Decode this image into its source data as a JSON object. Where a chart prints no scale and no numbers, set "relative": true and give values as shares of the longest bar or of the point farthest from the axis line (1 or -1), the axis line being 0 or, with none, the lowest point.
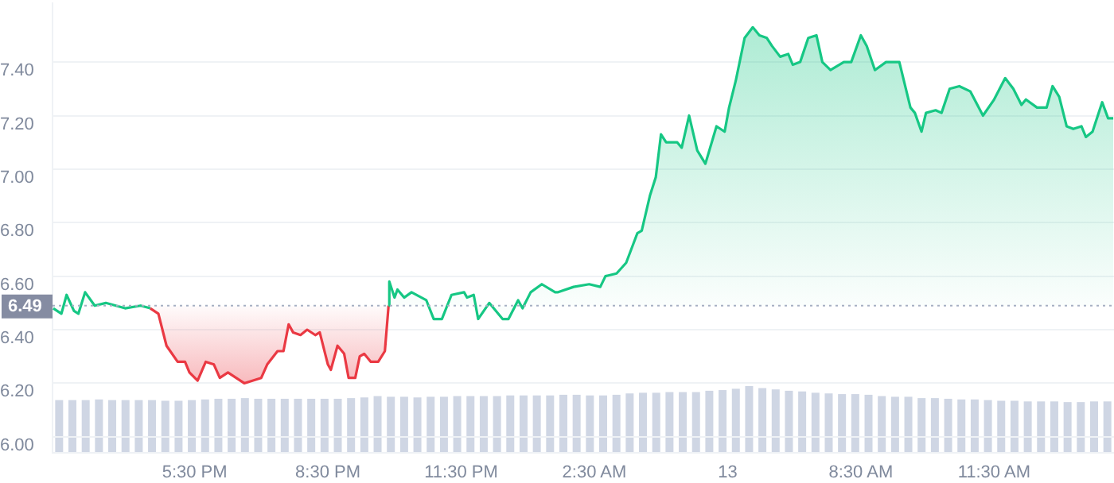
{
  "chart_data": [
    {
      "type": "area",
      "xlim": [
        "--01-12T14:18",
        "--01-13T14:12"
      ],
      "ylim": [
        5.94,
        7.62
      ],
      "xticks": [
        {
          "value": "--01-12T17:30",
          "label": "5:30 PM"
        },
        {
          "value": "--01-12T20:30",
          "label": "8:30 PM"
        },
        {
          "value": "--01-12T23:30",
          "label": "11:30 PM"
        },
        {
          "value": "--01-13T02:30",
          "label": "2:30 AM"
        },
        {
          "value": "--01-13T05:30",
          "label": "13"
        },
        {
          "value": "--01-13T08:30",
          "label": "8:30 AM"
        },
        {
          "value": "--01-13T11:30",
          "label": "11:30 AM"
        }
      ],
      "yticks": [
        {
          "value": 6,
          "label": "6.00"
        },
        {
          "value": 6.2,
          "label": "6.20"
        },
        {
          "value": 6.4,
          "label": "6.40"
        },
        {
          "value": 6.6,
          "label": "6.60"
        },
        {
          "value": 6.8,
          "label": "6.80"
        },
        {
          "value": 7,
          "label": "7.00"
        },
        {
          "value": 7.2,
          "label": "7.20"
        },
        {
          "value": 7.4,
          "label": "7.40"
        }
      ],
      "grid": "y",
      "legend": false,
      "ref_lines": [
        {
          "axis": "y",
          "value": 6.49,
          "label": "6.49"
        }
      ],
      "series": [
        {
          "color": "#16c784",
          "x": [
            "--01-12T14:19",
            "--01-12T14:30",
            "--01-12T14:37",
            "--01-12T14:47",
            "--01-12T14:53",
            "--01-12T15:02",
            "--01-12T15:15",
            "--01-12T15:30",
            "--01-12T15:56",
            "--01-12T16:17",
            "--01-12T16:30",
            "--01-12T19:00",
            "--01-12T21:52",
            "--01-12T21:53",
            "--01-12T22:00",
            "--01-12T22:04",
            "--01-12T22:13",
            "--01-12T22:23",
            "--01-12T22:43",
            "--01-12T22:53",
            "--01-12T23:04",
            "--01-12T23:17",
            "--01-12T23:34",
            "--01-12T23:38",
            "--01-12T23:47",
            "--01-12T23:53",
            "--01-13T00:08",
            "--01-13T00:26",
            "--01-13T00:34",
            "--01-13T00:47",
            "--01-13T00:53",
            "--01-13T01:04",
            "--01-13T01:19",
            "--01-13T01:37",
            "--01-13T01:41",
            "--01-13T02:02",
            "--01-13T02:23",
            "--01-13T02:38",
            "--01-13T02:45",
            "--01-13T03:00",
            "--01-13T03:13",
            "--01-13T03:28",
            "--01-13T03:34",
            "--01-13T03:45",
            "--01-13T03:53",
            "--01-13T04:00",
            "--01-13T04:07",
            "--01-13T04:22",
            "--01-13T04:28",
            "--01-13T04:38",
            "--01-13T04:49",
            "--01-13T05:00",
            "--01-13T05:15",
            "--01-13T05:26",
            "--01-13T05:32",
            "--01-13T05:41",
            "--01-13T05:53",
            "--01-13T06:04",
            "--01-13T06:13",
            "--01-13T06:23",
            "--01-13T06:30",
            "--01-13T06:41",
            "--01-13T06:52",
            "--01-13T06:58",
            "--01-13T07:08",
            "--01-13T07:19",
            "--01-13T07:30",
            "--01-13T07:38",
            "--01-13T07:49",
            "--01-13T08:07",
            "--01-13T08:17",
            "--01-13T08:30",
            "--01-13T08:38",
            "--01-13T08:49",
            "--01-13T09:04",
            "--01-13T09:22",
            "--01-13T09:37",
            "--01-13T09:43",
            "--01-13T09:52",
            "--01-13T09:58",
            "--01-13T10:11",
            "--01-13T10:19",
            "--01-13T10:30",
            "--01-13T10:43",
            "--01-13T10:58",
            "--01-13T11:15",
            "--01-13T11:30",
            "--01-13T11:45",
            "--01-13T11:56",
            "--01-13T12:07",
            "--01-13T12:13",
            "--01-13T12:28",
            "--01-13T12:41",
            "--01-13T12:49",
            "--01-13T12:58",
            "--01-13T13:08",
            "--01-13T13:17",
            "--01-13T13:28",
            "--01-13T13:34",
            "--01-13T13:43",
            "--01-13T13:56",
            "--01-13T14:04",
            "--01-13T14:11"
          ],
          "values": [
            6.48,
            6.46,
            6.53,
            6.47,
            6.46,
            6.54,
            6.49,
            6.5,
            6.48,
            6.49,
            6.48,
            null,
            6.49,
            6.58,
            6.52,
            6.55,
            6.52,
            6.54,
            6.51,
            6.44,
            6.44,
            6.53,
            6.54,
            6.52,
            6.53,
            6.44,
            6.5,
            6.44,
            6.44,
            6.51,
            6.48,
            6.54,
            6.57,
            6.54,
            6.54,
            6.56,
            6.57,
            6.56,
            6.6,
            6.61,
            6.65,
            6.76,
            6.77,
            6.9,
            6.97,
            7.13,
            7.1,
            7.1,
            7.08,
            7.2,
            7.07,
            7.02,
            7.16,
            7.14,
            7.23,
            7.33,
            7.49,
            7.53,
            7.5,
            7.49,
            7.46,
            7.42,
            7.43,
            7.39,
            7.4,
            7.49,
            7.5,
            7.4,
            7.37,
            7.4,
            7.4,
            7.5,
            7.46,
            7.37,
            7.4,
            7.4,
            7.23,
            7.21,
            7.14,
            7.21,
            7.22,
            7.21,
            7.3,
            7.31,
            7.29,
            7.2,
            7.26,
            7.34,
            7.3,
            7.24,
            7.26,
            7.23,
            7.23,
            7.31,
            7.27,
            7.16,
            7.15,
            7.16,
            7.12,
            7.14,
            7.25,
            7.19,
            7.19
          ]
        },
        {
          "color": "#ea3943",
          "x": [
            "--01-12T16:30",
            "--01-12T16:41",
            "--01-12T16:52",
            "--01-12T17:07",
            "--01-12T17:17",
            "--01-12T17:23",
            "--01-12T17:34",
            "--01-12T17:45",
            "--01-12T17:56",
            "--01-12T18:04",
            "--01-12T18:15",
            "--01-12T18:26",
            "--01-12T18:37",
            "--01-12T19:00",
            "--01-12T19:08",
            "--01-12T19:22",
            "--01-12T19:30",
            "--01-12T19:37",
            "--01-12T19:43",
            "--01-12T19:53",
            "--01-12T20:02",
            "--01-12T20:13",
            "--01-12T20:19",
            "--01-12T20:30",
            "--01-12T20:34",
            "--01-12T20:43",
            "--01-12T20:52",
            "--01-12T20:58",
            "--01-12T21:07",
            "--01-12T21:13",
            "--01-12T21:19",
            "--01-12T21:28",
            "--01-12T21:38",
            "--01-12T21:47",
            "--01-12T21:52"
          ],
          "values": [
            6.48,
            6.46,
            6.34,
            6.28,
            6.28,
            6.24,
            6.21,
            6.28,
            6.27,
            6.22,
            6.24,
            6.22,
            6.2,
            6.22,
            6.27,
            6.32,
            6.32,
            6.42,
            6.39,
            6.38,
            6.4,
            6.38,
            6.39,
            6.27,
            6.25,
            6.34,
            6.31,
            6.22,
            6.22,
            6.3,
            6.31,
            6.28,
            6.28,
            6.32,
            6.49
          ]
        }
      ]
    },
    {
      "type": "bar",
      "relative": true,
      "color": "#cfd6e4",
      "categories": [
        null,
        null,
        null,
        null,
        null,
        null,
        null,
        null,
        null,
        null,
        null,
        null,
        null,
        null,
        null,
        null,
        null,
        null,
        null,
        null,
        null,
        null,
        null,
        null,
        null,
        null,
        null,
        null,
        null,
        null,
        null,
        null,
        null,
        null,
        null,
        null,
        null,
        null,
        null,
        null,
        null,
        null,
        null,
        null,
        null,
        null,
        null,
        null,
        null,
        null,
        null,
        null,
        null,
        null,
        null,
        null,
        null,
        null,
        null,
        null,
        null,
        null,
        null,
        null,
        null,
        null,
        null,
        null,
        null,
        null,
        null,
        null,
        null,
        null,
        null,
        null,
        null,
        null,
        null,
        null
      ],
      "values": [
        0.79,
        0.79,
        0.79,
        0.8,
        0.79,
        0.79,
        0.79,
        0.79,
        0.78,
        0.78,
        0.79,
        0.8,
        0.81,
        0.81,
        0.82,
        0.81,
        0.81,
        0.81,
        0.81,
        0.81,
        0.81,
        0.81,
        0.82,
        0.83,
        0.85,
        0.84,
        0.84,
        0.83,
        0.84,
        0.84,
        0.85,
        0.85,
        0.85,
        0.85,
        0.86,
        0.86,
        0.86,
        0.86,
        0.87,
        0.87,
        0.86,
        0.86,
        0.87,
        0.89,
        0.9,
        0.9,
        0.91,
        0.91,
        0.91,
        0.93,
        0.94,
        0.96,
        1,
        0.97,
        0.95,
        0.93,
        0.92,
        0.9,
        0.89,
        0.88,
        0.88,
        0.87,
        0.85,
        0.84,
        0.84,
        0.82,
        0.82,
        0.81,
        0.8,
        0.8,
        0.79,
        0.78,
        0.78,
        0.77,
        0.77,
        0.77,
        0.76,
        0.76,
        0.77,
        0.77
      ]
    }
  ]
}
